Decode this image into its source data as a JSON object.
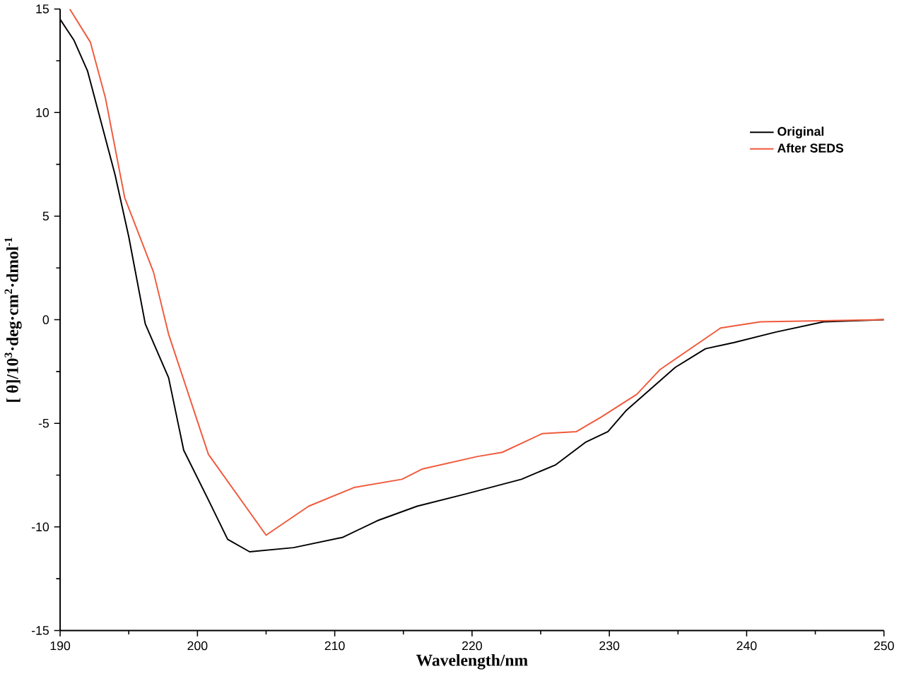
{
  "chart_data": {
    "type": "line",
    "xlabel": "Wavelength/nm",
    "ylabel": "[ θ]/10$^{3}$·deg·cm$^{2}$·dmol$^{-1}$",
    "xlim": [
      190,
      250
    ],
    "ylim": [
      -15,
      15
    ],
    "xticks": [
      190,
      200,
      210,
      220,
      230,
      240,
      250
    ],
    "yticks": [
      -15,
      -10,
      -5,
      0,
      5,
      10,
      15
    ],
    "grid": false,
    "legend": "top right",
    "marker": "none",
    "line_style": "solid",
    "series": [
      {
        "name": "Original",
        "color": "#000000",
        "x": [
          190,
          191,
          192,
          193,
          194,
          195,
          196.2,
          197.9,
          199,
          200.8,
          202.2,
          203.8,
          207,
          210.6,
          213.1,
          216,
          219.6,
          223.6,
          226.1,
          228.3,
          229.9,
          231.2,
          234.8,
          237,
          239.1,
          242.1,
          245.6,
          250
        ],
        "values": [
          14.5,
          13.5,
          12,
          9.5,
          7,
          4,
          -0.2,
          -2.8,
          -6.3,
          -8.7,
          -10.6,
          -11.2,
          -11.0,
          -10.5,
          -9.7,
          -9.0,
          -8.4,
          -7.7,
          -7.0,
          -5.9,
          -5.4,
          -4.4,
          -2.3,
          -1.4,
          -1.1,
          -0.6,
          -0.1,
          0
        ]
      },
      {
        "name": "After SEDS",
        "color": "#f05a3c",
        "x": [
          190.7,
          192.2,
          193.3,
          194.7,
          196.8,
          197.9,
          200.8,
          205,
          208.1,
          211.4,
          214.9,
          216.4,
          220.4,
          222.2,
          225.1,
          227.6,
          229.4,
          232,
          233.7,
          235.9,
          238.1,
          241,
          250
        ],
        "values": [
          15.0,
          13.4,
          10.7,
          5.9,
          2.3,
          -0.7,
          -6.5,
          -10.4,
          -9.0,
          -8.1,
          -7.7,
          -7.2,
          -6.6,
          -6.4,
          -5.5,
          -5.4,
          -4.7,
          -3.6,
          -2.4,
          -1.4,
          -0.4,
          -0.1,
          0
        ]
      }
    ]
  }
}
